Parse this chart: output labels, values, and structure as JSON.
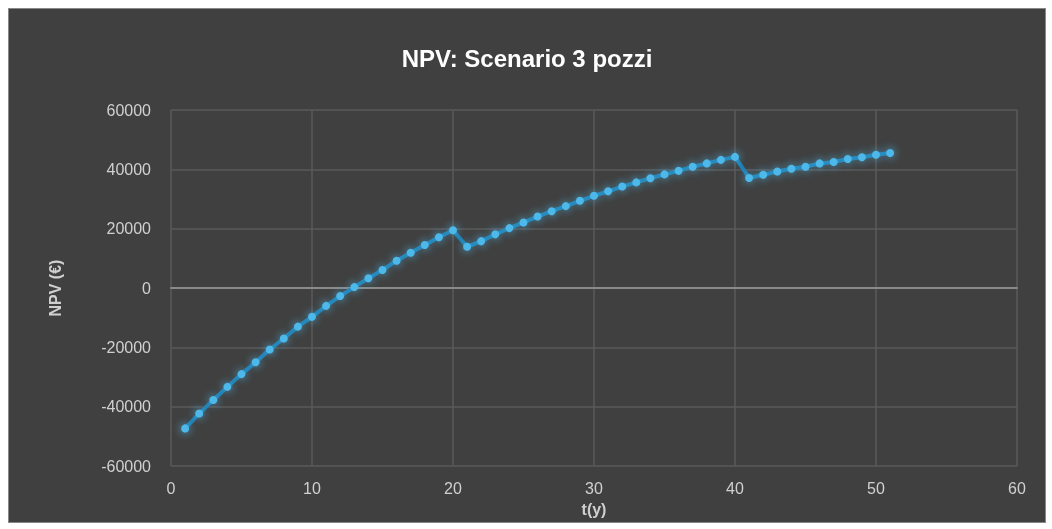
{
  "chart_data": {
    "type": "line",
    "title": "NPV: Scenario 3 pozzi",
    "xlabel": "t(y)",
    "ylabel": "NPV (€)",
    "x": [
      1,
      2,
      3,
      4,
      5,
      6,
      7,
      8,
      9,
      10,
      11,
      12,
      13,
      14,
      15,
      16,
      17,
      18,
      19,
      20,
      21,
      22,
      23,
      24,
      25,
      26,
      27,
      28,
      29,
      30,
      31,
      32,
      33,
      34,
      35,
      36,
      37,
      38,
      39,
      40,
      41,
      42,
      43,
      44,
      45,
      46,
      47,
      48,
      49,
      50,
      51
    ],
    "series": [
      {
        "color": "#4db8ea",
        "values": [
          -47300,
          -42300,
          -37700,
          -33300,
          -29000,
          -25000,
          -20700,
          -17000,
          -13000,
          -9700,
          -6000,
          -2700,
          300,
          3300,
          6100,
          9200,
          11900,
          14500,
          17100,
          19500,
          13900,
          15800,
          18100,
          20200,
          22100,
          24100,
          25900,
          27600,
          29400,
          31100,
          32600,
          34200,
          35600,
          37000,
          38300,
          39500,
          40900,
          42000,
          43200,
          44200,
          37100,
          38200,
          39300,
          40200,
          40900,
          42000,
          42500,
          43500,
          44100,
          44900,
          45500
        ]
      }
    ],
    "xlim": [
      0,
      60
    ],
    "xticks": [
      0,
      10,
      20,
      30,
      40,
      50,
      60
    ],
    "ylim": [
      -60000,
      60000
    ],
    "yticks": [
      -60000,
      -40000,
      -20000,
      0,
      20000,
      40000,
      60000
    ],
    "grid": true,
    "marker": "circle",
    "line_style": "solid"
  }
}
